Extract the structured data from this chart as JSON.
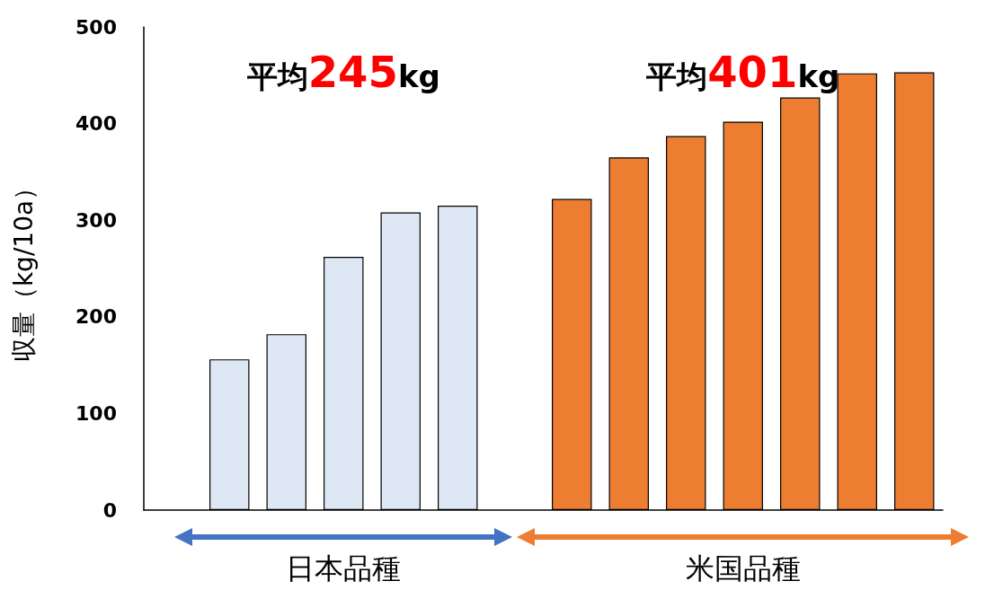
{
  "chart_data": {
    "type": "bar",
    "ylabel": "収量（kg/10a）",
    "categories": [
      null,
      null,
      null,
      null,
      null,
      null,
      null,
      null,
      null,
      null,
      null,
      null,
      null,
      null
    ],
    "series": [
      {
        "name": "日本品種",
        "color": "#dde8f4",
        "values": [
          null,
          156,
          182,
          262,
          308,
          315,
          null,
          null,
          null,
          null,
          null,
          null,
          null,
          null
        ]
      },
      {
        "name": "米国品種",
        "color": "#ed7d31",
        "values": [
          null,
          null,
          null,
          null,
          null,
          null,
          null,
          322,
          365,
          387,
          402,
          427,
          452,
          453
        ]
      }
    ],
    "ylim": [
      0,
      500
    ],
    "yticks": [
      0,
      100,
      200,
      300,
      400,
      500
    ],
    "grid": false,
    "legend": false,
    "annotations": [
      "平均245kg",
      "平均401kg"
    ]
  }
}
